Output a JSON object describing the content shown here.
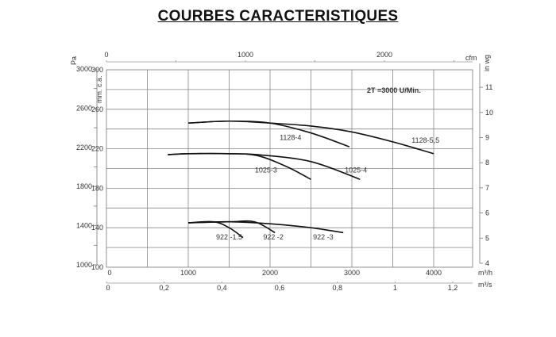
{
  "title": "COURBES CARACTERISTIQUES",
  "chart_data": {
    "type": "line",
    "title": "COURBES CARACTERISTIQUES",
    "annotation": "2T =3000 U/Min.",
    "grid": true,
    "x_axis": {
      "unit": "m³/h",
      "range": [
        0,
        4500
      ],
      "ticks": [
        0,
        1000,
        2000,
        3000,
        4000
      ]
    },
    "x_axis_top": {
      "unit": "cfm",
      "ticks": [
        0,
        1000,
        2000
      ]
    },
    "x_axis_bottom2": {
      "unit": "m³/s",
      "ticks": [
        "0",
        "0,2",
        "0,4",
        "0,6",
        "0,8",
        "1",
        "1,2"
      ],
      "values": [
        0,
        0.2,
        0.4,
        0.6,
        0.8,
        1,
        1.2
      ]
    },
    "y_axis": {
      "unit": "mm. c.a.",
      "range": [
        100,
        300
      ],
      "ticks": [
        100,
        140,
        180,
        220,
        260,
        300
      ]
    },
    "y_axis_left": {
      "unit": "Pa",
      "ticks": [
        1000,
        1400,
        1800,
        2200,
        2600,
        3000
      ]
    },
    "y_axis_right": {
      "unit": "in wg",
      "ticks": [
        4,
        5,
        6,
        7,
        8,
        9,
        10,
        11
      ]
    },
    "series": [
      {
        "name": "1128-5,5",
        "x": [
          1000,
          1500,
          2000,
          2500,
          3000,
          3500,
          4000
        ],
        "y": [
          246,
          248,
          246,
          243,
          237,
          227,
          215
        ]
      },
      {
        "name": "1128-4",
        "x": [
          1000,
          1500,
          2000,
          2500,
          2970
        ],
        "y": [
          246,
          248,
          246,
          236,
          222
        ]
      },
      {
        "name": "1025-4",
        "x": [
          750,
          1000,
          1500,
          1850,
          2500,
          3100
        ],
        "y": [
          214,
          215,
          215,
          214,
          207,
          189
        ]
      },
      {
        "name": "1025-3",
        "x": [
          750,
          1000,
          1500,
          1850,
          2200,
          2500
        ],
        "y": [
          214,
          215,
          215,
          213,
          202,
          189
        ]
      },
      {
        "name": "922 -3",
        "x": [
          1000,
          1500,
          2000,
          2500,
          2895
        ],
        "y": [
          145,
          146,
          144,
          140,
          135
        ]
      },
      {
        "name": "922 -2",
        "x": [
          1000,
          1500,
          1810,
          2060
        ],
        "y": [
          145,
          146,
          146,
          135
        ]
      },
      {
        "name": "922 -1.5",
        "x": [
          1000,
          1310,
          1500,
          1670
        ],
        "y": [
          145,
          146,
          140,
          130
        ]
      }
    ],
    "label_positions_data": {
      "1128-5,5": [
        3900,
        226
      ],
      "1128-4": [
        2250,
        229
      ],
      "1025-4": [
        3050,
        196
      ],
      "1025-3": [
        1950,
        196
      ],
      "922 -3": [
        2650,
        128
      ],
      "922 -2": [
        2040,
        128
      ],
      "922 -1.5": [
        1500,
        128
      ]
    }
  }
}
